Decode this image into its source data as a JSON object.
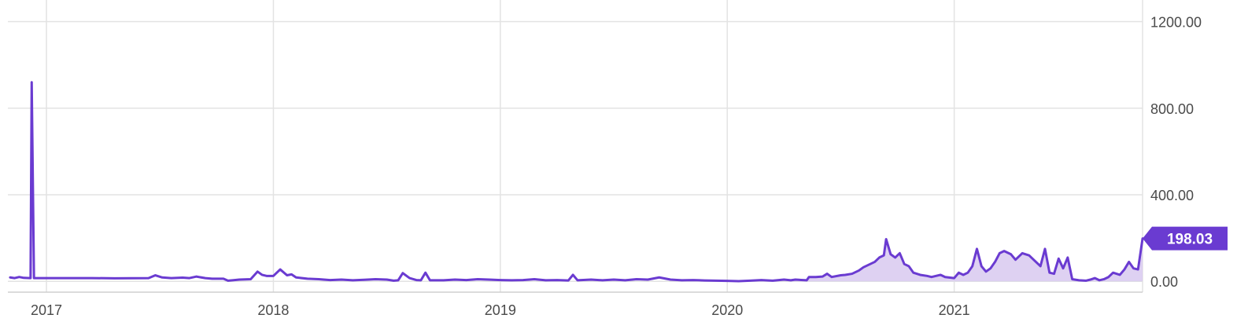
{
  "chart_data": {
    "type": "area",
    "title": "",
    "xlabel": "",
    "ylabel": "",
    "ylim": [
      -50,
      1300
    ],
    "xlim": [
      2016.83,
      2021.83
    ],
    "grid": true,
    "y_axis_position": "right",
    "colors": {
      "line": "#6a3bd1",
      "fill": "#d8c9f0",
      "grid": "#e3e3e3",
      "badge": "#6a3bd1"
    },
    "y_ticks": [
      {
        "value": 0,
        "label": "0.00"
      },
      {
        "value": 400,
        "label": "400.00"
      },
      {
        "value": 800,
        "label": "800.00"
      },
      {
        "value": 1200,
        "label": "1200.00"
      }
    ],
    "x_ticks": [
      {
        "value": 2017.0,
        "label": "2017"
      },
      {
        "value": 2018.0,
        "label": "2018"
      },
      {
        "value": 2019.0,
        "label": "2019"
      },
      {
        "value": 2020.0,
        "label": "2020"
      },
      {
        "value": 2021.0,
        "label": "2021"
      }
    ],
    "fill_start": 2020.28,
    "last_value": {
      "value": 198.03,
      "label": "198.03"
    },
    "series": [
      {
        "points": [
          [
            2016.84,
            18
          ],
          [
            2016.86,
            15
          ],
          [
            2016.88,
            20
          ],
          [
            2016.9,
            16
          ],
          [
            2016.93,
            15
          ],
          [
            2016.935,
            920
          ],
          [
            2016.945,
            15
          ],
          [
            2016.97,
            15
          ],
          [
            2017.05,
            15
          ],
          [
            2017.2,
            15
          ],
          [
            2017.3,
            14
          ],
          [
            2017.45,
            15
          ],
          [
            2017.48,
            28
          ],
          [
            2017.51,
            18
          ],
          [
            2017.55,
            15
          ],
          [
            2017.6,
            17
          ],
          [
            2017.63,
            15
          ],
          [
            2017.66,
            22
          ],
          [
            2017.7,
            15
          ],
          [
            2017.73,
            12
          ],
          [
            2017.78,
            12
          ],
          [
            2017.8,
            3
          ],
          [
            2017.82,
            5
          ],
          [
            2017.85,
            8
          ],
          [
            2017.9,
            10
          ],
          [
            2017.93,
            45
          ],
          [
            2017.95,
            30
          ],
          [
            2017.97,
            25
          ],
          [
            2018.0,
            25
          ],
          [
            2018.03,
            55
          ],
          [
            2018.06,
            28
          ],
          [
            2018.08,
            32
          ],
          [
            2018.1,
            18
          ],
          [
            2018.15,
            12
          ],
          [
            2018.2,
            10
          ],
          [
            2018.25,
            6
          ],
          [
            2018.3,
            8
          ],
          [
            2018.35,
            5
          ],
          [
            2018.4,
            7
          ],
          [
            2018.45,
            10
          ],
          [
            2018.5,
            8
          ],
          [
            2018.53,
            3
          ],
          [
            2018.55,
            5
          ],
          [
            2018.57,
            38
          ],
          [
            2018.6,
            15
          ],
          [
            2018.63,
            6
          ],
          [
            2018.65,
            5
          ],
          [
            2018.67,
            40
          ],
          [
            2018.69,
            5
          ],
          [
            2018.75,
            5
          ],
          [
            2018.8,
            8
          ],
          [
            2018.85,
            6
          ],
          [
            2018.9,
            10
          ],
          [
            2018.95,
            8
          ],
          [
            2019.0,
            6
          ],
          [
            2019.05,
            5
          ],
          [
            2019.1,
            6
          ],
          [
            2019.15,
            10
          ],
          [
            2019.2,
            5
          ],
          [
            2019.25,
            6
          ],
          [
            2019.3,
            4
          ],
          [
            2019.32,
            30
          ],
          [
            2019.34,
            5
          ],
          [
            2019.4,
            8
          ],
          [
            2019.45,
            5
          ],
          [
            2019.5,
            8
          ],
          [
            2019.55,
            5
          ],
          [
            2019.6,
            10
          ],
          [
            2019.65,
            8
          ],
          [
            2019.7,
            18
          ],
          [
            2019.75,
            8
          ],
          [
            2019.8,
            5
          ],
          [
            2019.85,
            6
          ],
          [
            2019.9,
            4
          ],
          [
            2019.95,
            3
          ],
          [
            2020.0,
            2
          ],
          [
            2020.05,
            1
          ],
          [
            2020.1,
            3
          ],
          [
            2020.15,
            6
          ],
          [
            2020.2,
            3
          ],
          [
            2020.25,
            8
          ],
          [
            2020.28,
            5
          ],
          [
            2020.3,
            8
          ],
          [
            2020.35,
            5
          ],
          [
            2020.36,
            20
          ],
          [
            2020.39,
            20
          ],
          [
            2020.42,
            22
          ],
          [
            2020.44,
            35
          ],
          [
            2020.46,
            20
          ],
          [
            2020.5,
            28
          ],
          [
            2020.52,
            30
          ],
          [
            2020.55,
            35
          ],
          [
            2020.58,
            50
          ],
          [
            2020.6,
            65
          ],
          [
            2020.63,
            80
          ],
          [
            2020.65,
            90
          ],
          [
            2020.67,
            110
          ],
          [
            2020.69,
            120
          ],
          [
            2020.7,
            195
          ],
          [
            2020.72,
            125
          ],
          [
            2020.74,
            110
          ],
          [
            2020.76,
            130
          ],
          [
            2020.78,
            80
          ],
          [
            2020.8,
            70
          ],
          [
            2020.82,
            40
          ],
          [
            2020.85,
            30
          ],
          [
            2020.88,
            25
          ],
          [
            2020.9,
            20
          ],
          [
            2020.92,
            25
          ],
          [
            2020.94,
            30
          ],
          [
            2020.96,
            20
          ],
          [
            2021.0,
            15
          ],
          [
            2021.02,
            40
          ],
          [
            2021.04,
            30
          ],
          [
            2021.06,
            40
          ],
          [
            2021.08,
            70
          ],
          [
            2021.1,
            150
          ],
          [
            2021.12,
            70
          ],
          [
            2021.14,
            45
          ],
          [
            2021.16,
            60
          ],
          [
            2021.18,
            90
          ],
          [
            2021.2,
            130
          ],
          [
            2021.22,
            140
          ],
          [
            2021.25,
            125
          ],
          [
            2021.27,
            100
          ],
          [
            2021.3,
            130
          ],
          [
            2021.33,
            120
          ],
          [
            2021.36,
            90
          ],
          [
            2021.38,
            70
          ],
          [
            2021.4,
            150
          ],
          [
            2021.42,
            40
          ],
          [
            2021.44,
            35
          ],
          [
            2021.46,
            105
          ],
          [
            2021.48,
            60
          ],
          [
            2021.5,
            110
          ],
          [
            2021.52,
            10
          ],
          [
            2021.55,
            5
          ],
          [
            2021.58,
            3
          ],
          [
            2021.6,
            8
          ],
          [
            2021.62,
            15
          ],
          [
            2021.64,
            5
          ],
          [
            2021.66,
            10
          ],
          [
            2021.68,
            20
          ],
          [
            2021.7,
            40
          ],
          [
            2021.73,
            30
          ],
          [
            2021.75,
            55
          ],
          [
            2021.77,
            90
          ],
          [
            2021.79,
            60
          ],
          [
            2021.81,
            55
          ],
          [
            2021.83,
            198
          ]
        ]
      }
    ]
  }
}
